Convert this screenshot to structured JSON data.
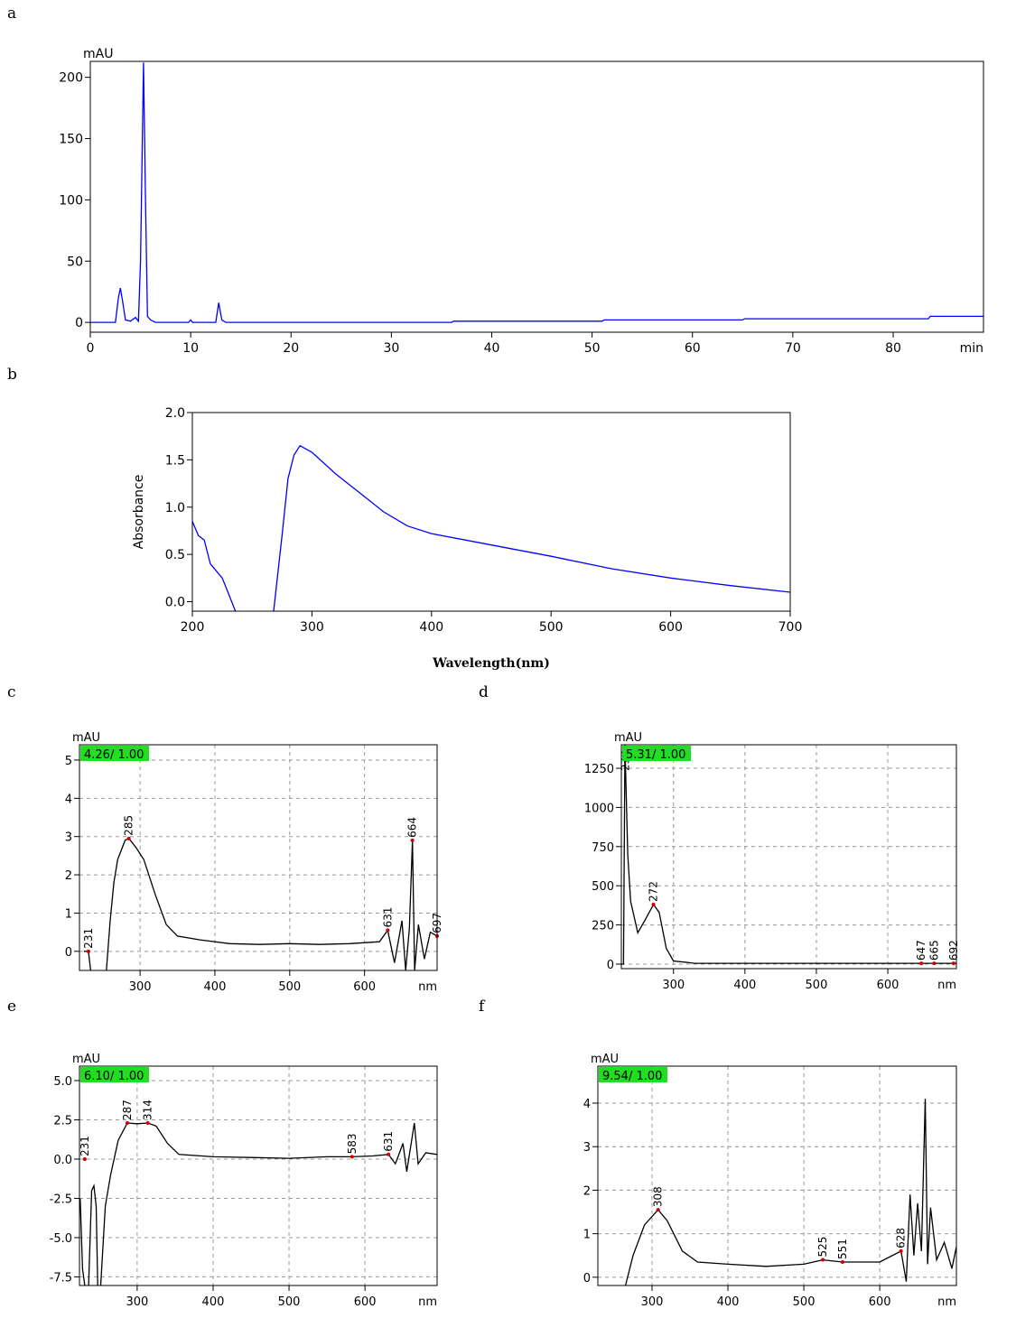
{
  "chart_data": [
    {
      "type": "line",
      "panel": "a",
      "y_unit": "mAU",
      "x_unit": "min",
      "color": "#0000ff",
      "x": [
        0,
        2.5,
        2.8,
        3,
        3.2,
        3.5,
        4,
        4.5,
        4.8,
        5,
        5.3,
        5.5,
        5.7,
        6,
        6.5,
        9.8,
        10,
        10.2,
        12.5,
        12.8,
        13.1,
        13.5,
        36,
        36.2,
        51,
        51.2,
        65,
        65.2,
        83.5,
        83.7,
        89
      ],
      "values": [
        0,
        0,
        20,
        28,
        18,
        2,
        1,
        4,
        1,
        50,
        212,
        100,
        5,
        2,
        0,
        0,
        2,
        0,
        0,
        16,
        2,
        0,
        0,
        1,
        1,
        2,
        2,
        3,
        3,
        5,
        5
      ],
      "xlim": [
        0,
        89
      ],
      "ylim": [
        -8,
        213
      ],
      "xticks": [
        0,
        10,
        20,
        30,
        40,
        50,
        60,
        70,
        80
      ],
      "yticks": [
        0,
        50,
        100,
        150,
        200
      ],
      "grid": false
    },
    {
      "type": "line",
      "panel": "b",
      "ylabel": "Absorbance",
      "xlabel": "Wavelength(nm)",
      "color": "#0000ff",
      "x": [
        200,
        205,
        210,
        215,
        225,
        236,
        250,
        268,
        275,
        280,
        285,
        290,
        300,
        320,
        340,
        360,
        380,
        400,
        450,
        500,
        550,
        600,
        650,
        700
      ],
      "values": [
        0.85,
        0.7,
        0.65,
        0.4,
        0.25,
        -0.1,
        null,
        -0.1,
        0.7,
        1.3,
        1.55,
        1.65,
        1.58,
        1.35,
        1.15,
        0.95,
        0.8,
        0.72,
        0.6,
        0.48,
        0.35,
        0.25,
        0.17,
        0.1
      ],
      "xlim": [
        200,
        700
      ],
      "ylim": [
        -0.1,
        2.0
      ],
      "xticks": [
        200,
        300,
        400,
        500,
        600,
        700
      ],
      "yticks": [
        {
          "value": 0,
          "label": "0.0"
        },
        {
          "value": 0.5,
          "label": "0.5"
        },
        {
          "value": 1,
          "label": "1.0"
        },
        {
          "value": 1.5,
          "label": "1.5"
        },
        {
          "value": 2,
          "label": "2.0"
        }
      ],
      "grid": false
    },
    {
      "type": "line",
      "panel": "c",
      "y_unit": "mAU",
      "x_unit": "nm",
      "retention_label": "4.26/ 1.00",
      "color": "#000000",
      "x": [
        225,
        231,
        234,
        245,
        255,
        260,
        265,
        270,
        280,
        285,
        295,
        305,
        320,
        335,
        350,
        380,
        420,
        460,
        500,
        540,
        580,
        620,
        631,
        640,
        650,
        655,
        660,
        664,
        667,
        672,
        680,
        688,
        697
      ],
      "values": [
        0,
        0,
        -0.5,
        null,
        -0.5,
        0.8,
        1.8,
        2.4,
        2.9,
        2.95,
        2.7,
        2.4,
        1.5,
        0.7,
        0.4,
        0.3,
        0.2,
        0.18,
        0.2,
        0.18,
        0.2,
        0.25,
        0.55,
        -0.3,
        0.8,
        -0.5,
        0.6,
        2.9,
        -0.5,
        0.7,
        -0.2,
        0.5,
        0.4
      ],
      "peaks": [
        {
          "x": 231,
          "y": 0
        },
        {
          "x": 285,
          "y": 2.95
        },
        {
          "x": 631,
          "y": 0.55
        },
        {
          "x": 664,
          "y": 2.9
        },
        {
          "x": 697,
          "y": 0.4
        }
      ],
      "xlim": [
        219,
        697
      ],
      "ylim": [
        -0.5,
        5.4
      ],
      "xticks": [
        300,
        400,
        500,
        600
      ],
      "yticks": [
        0,
        1,
        2,
        3,
        4,
        5
      ],
      "grid": true
    },
    {
      "type": "line",
      "panel": "d",
      "y_unit": "mAU",
      "x_unit": "nm",
      "retention_label": "5.31/ 1.00",
      "color": "#000000",
      "x": [
        227,
        230,
        232,
        236,
        240,
        250,
        260,
        272,
        280,
        290,
        300,
        320,
        330,
        400,
        500,
        600,
        696
      ],
      "values": [
        0,
        0,
        1400,
        700,
        400,
        200,
        280,
        380,
        330,
        100,
        20,
        10,
        5,
        5,
        5,
        5,
        5
      ],
      "peaks": [
        {
          "x": 233,
          "y": 1300
        },
        {
          "x": 272,
          "y": 380
        },
        {
          "x": 647,
          "y": 5
        },
        {
          "x": 665,
          "y": 5
        },
        {
          "x": 692,
          "y": 5
        }
      ],
      "xlim": [
        227,
        696
      ],
      "ylim": [
        -29,
        1400
      ],
      "xticks": [
        300,
        400,
        500,
        600
      ],
      "yticks": [
        0,
        250,
        500,
        750,
        1000,
        1250
      ],
      "grid": true
    },
    {
      "type": "line",
      "panel": "e",
      "y_unit": "mAU",
      "x_unit": "nm",
      "retention_label": "6.10/ 1.00",
      "color": "#000000",
      "x": [
        225,
        228,
        231,
        233,
        236,
        240,
        243,
        246,
        248,
        250,
        252,
        258,
        265,
        275,
        287,
        300,
        314,
        325,
        340,
        355,
        400,
        450,
        500,
        550,
        583,
        610,
        631,
        640,
        650,
        655,
        665,
        670,
        680,
        695
      ],
      "values": [
        -2.5,
        -7,
        -8.05,
        null,
        -8.05,
        -2,
        -1.7,
        -3,
        -8.05,
        null,
        -8.05,
        -3,
        -1,
        1.2,
        2.3,
        2.25,
        2.3,
        2.1,
        1,
        0.3,
        0.15,
        0.1,
        0.05,
        0.15,
        0.15,
        0.2,
        0.3,
        -0.3,
        1,
        -0.8,
        2.3,
        -0.3,
        0.4,
        0.3
      ],
      "peaks": [
        {
          "x": 231,
          "y": 0
        },
        {
          "x": 287,
          "y": 2.3
        },
        {
          "x": 314,
          "y": 2.3
        },
        {
          "x": 583,
          "y": 0.15
        },
        {
          "x": 631,
          "y": 0.3
        }
      ],
      "xlim": [
        224,
        695
      ],
      "ylim": [
        -8.05,
        5.92
      ],
      "xticks": [
        300,
        400,
        500,
        600
      ],
      "yticks": [
        {
          "value": -7.5,
          "label": "-7.5"
        },
        {
          "value": -5,
          "label": "-5.0"
        },
        {
          "value": -2.5,
          "label": "-2.5"
        },
        {
          "value": 0,
          "label": "0.0"
        },
        {
          "value": 2.5,
          "label": "2.5"
        },
        {
          "value": 5,
          "label": "5.0"
        }
      ],
      "grid": true
    },
    {
      "type": "line",
      "panel": "f",
      "y_unit": "mAU",
      "x_unit": "nm",
      "retention_label": "9.54/ 1.00",
      "color": "#000000",
      "x": [
        265,
        275,
        290,
        308,
        320,
        340,
        360,
        400,
        450,
        500,
        525,
        551,
        600,
        628,
        635,
        640,
        645,
        650,
        655,
        660,
        663,
        667,
        675,
        685,
        695,
        701
      ],
      "values": [
        -0.19,
        0.5,
        1.2,
        1.55,
        1.3,
        0.6,
        0.35,
        0.3,
        0.25,
        0.3,
        0.4,
        0.35,
        0.35,
        0.6,
        -0.1,
        1.9,
        0.5,
        1.7,
        0.6,
        4.1,
        0.3,
        1.6,
        0.4,
        0.8,
        0.2,
        0.7
      ],
      "peaks": [
        {
          "x": 308,
          "y": 1.55
        },
        {
          "x": 525,
          "y": 0.4
        },
        {
          "x": 551,
          "y": 0.35
        },
        {
          "x": 628,
          "y": 0.6
        }
      ],
      "xlim": [
        228.6,
        701
      ],
      "ylim": [
        -0.19,
        4.85
      ],
      "xticks": [
        300,
        400,
        500,
        600
      ],
      "yticks": [
        0,
        1,
        2,
        3,
        4
      ],
      "grid": true
    }
  ]
}
